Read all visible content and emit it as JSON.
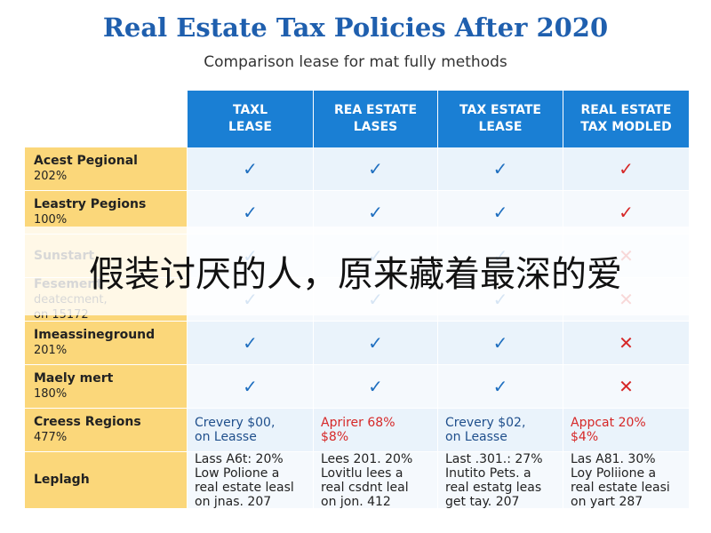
{
  "header": {
    "title": "Real Estate Tax Policies After 2020",
    "subtitle": "Comparison lease for mat fully methods"
  },
  "table": {
    "columns": [
      [
        "TAXL",
        "LEASE"
      ],
      [
        "REA ESTATE",
        "LASES"
      ],
      [
        "TAX ESTATE",
        "LEASE"
      ],
      [
        "REAL ESTATE",
        "TAX MODLED"
      ]
    ],
    "rows": [
      {
        "label": [
          "Acest Pegional",
          "202%"
        ],
        "cells": [
          {
            "lines": [
              "✓"
            ],
            "color": "#1f6fc0"
          },
          {
            "lines": [
              "✓"
            ],
            "color": "#1f6fc0"
          },
          {
            "lines": [
              "✓"
            ],
            "color": "#1f6fc0"
          },
          {
            "lines": [
              "✓"
            ],
            "color": "#d62828"
          }
        ]
      },
      {
        "label": [
          "Leastry Pegions",
          "100%"
        ],
        "cells": [
          {
            "lines": [
              "✓"
            ],
            "color": "#1f6fc0"
          },
          {
            "lines": [
              "✓"
            ],
            "color": "#1f6fc0"
          },
          {
            "lines": [
              "✓"
            ],
            "color": "#1f6fc0"
          },
          {
            "lines": [
              "✓"
            ],
            "color": "#d62828"
          }
        ]
      },
      {
        "label": [
          "Sunstart"
        ],
        "cells": [
          {
            "lines": [
              "✓"
            ],
            "color": "#1f6fc0"
          },
          {
            "lines": [
              "✓"
            ],
            "color": "#1f6fc0"
          },
          {
            "lines": [
              "✓"
            ],
            "color": "#1f6fc0"
          },
          {
            "lines": [
              "✕"
            ],
            "color": "#d62828"
          }
        ]
      },
      {
        "label": [
          "Fesement",
          "deatecment,",
          "on 15172"
        ],
        "cells": [
          {
            "lines": [
              "✓"
            ],
            "color": "#1f6fc0"
          },
          {
            "lines": [
              "✓"
            ],
            "color": "#1f6fc0"
          },
          {
            "lines": [
              "✓"
            ],
            "color": "#1f6fc0"
          },
          {
            "lines": [
              "✕"
            ],
            "color": "#d62828"
          }
        ]
      },
      {
        "label": [
          "Imeassineground",
          "201%"
        ],
        "cells": [
          {
            "lines": [
              "✓"
            ],
            "color": "#1f6fc0"
          },
          {
            "lines": [
              "✓"
            ],
            "color": "#1f6fc0"
          },
          {
            "lines": [
              "✓"
            ],
            "color": "#1f6fc0"
          },
          {
            "lines": [
              "✕"
            ],
            "color": "#d62828"
          }
        ]
      },
      {
        "label": [
          "Maely mert",
          "180%"
        ],
        "cells": [
          {
            "lines": [
              "✓"
            ],
            "color": "#1f6fc0"
          },
          {
            "lines": [
              "✓"
            ],
            "color": "#1f6fc0"
          },
          {
            "lines": [
              "✓"
            ],
            "color": "#1f6fc0"
          },
          {
            "lines": [
              "✕"
            ],
            "color": "#d62828"
          }
        ]
      },
      {
        "label": [
          "Creess Regions",
          "477%"
        ],
        "cells": [
          {
            "lines": [
              "Crevery $00,",
              "on Leasse"
            ],
            "color": "#1f4f8c"
          },
          {
            "lines": [
              "Aprirer 68%",
              "$8%"
            ],
            "color": "#d62828"
          },
          {
            "lines": [
              "Crevery $02,",
              "on Leasse"
            ],
            "color": "#1f4f8c"
          },
          {
            "lines": [
              "Appcat 20%",
              "$4%"
            ],
            "color": "#d62828"
          }
        ]
      },
      {
        "label": [
          "Leplagh"
        ],
        "cells": [
          {
            "lines": [
              "Lass A6t: 20%",
              "Low Polione a",
              "real estate leasl",
              "on jnas. 207"
            ],
            "color": "#222222"
          },
          {
            "lines": [
              "Lees 201. 20%",
              "Lovitlu lees a",
              "real csdnt leal",
              "on jon. 412"
            ],
            "color": "#222222"
          },
          {
            "lines": [
              "Last .301.: 27%",
              "Inutito Pets. a",
              "real estatg leas",
              "get tay. 207"
            ],
            "color": "#222222"
          },
          {
            "lines": [
              "Las A81. 30%",
              "Loy Poliione a",
              "real estate leasi",
              "on yart 287"
            ],
            "color": "#222222"
          }
        ]
      }
    ]
  },
  "overlay": {
    "text": "假装讨厌的人，原来藏着最深的爱"
  }
}
